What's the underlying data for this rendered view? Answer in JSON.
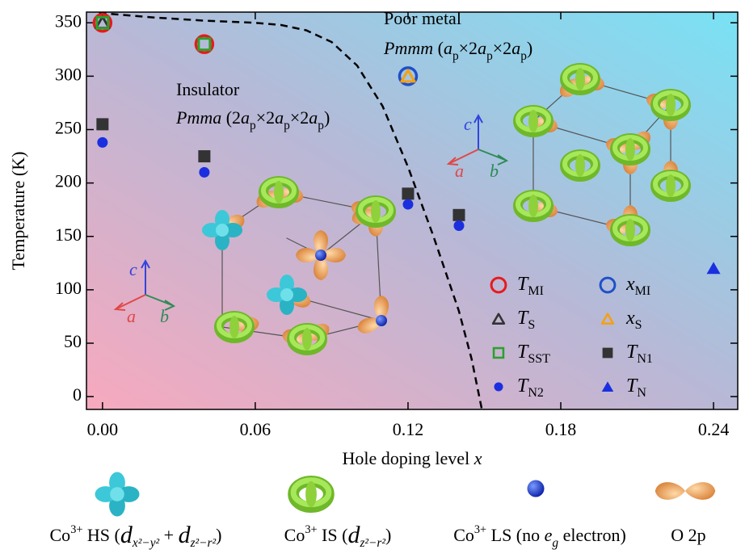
{
  "chart_data": {
    "type": "scatter",
    "x_label": [
      {
        "text": "Hole doping level "
      },
      {
        "text": "x",
        "italic": true
      }
    ],
    "y_label": "Temperature (K)",
    "xlim": [
      -0.0063,
      0.2495
    ],
    "ylim": [
      -12,
      360
    ],
    "xticks": [
      {
        "value": 0,
        "label": "0.00"
      },
      0.06,
      0.12,
      0.18,
      0.24
    ],
    "yticks": [
      0,
      50,
      100,
      150,
      200,
      250,
      300,
      350
    ],
    "series": [
      {
        "name": {
          "main": "T",
          "sub": "MI"
        },
        "marker": "open-circle",
        "color": "#e8191c",
        "x": [
          0,
          0.04
        ],
        "values": [
          350,
          330
        ]
      },
      {
        "name": {
          "main": "x",
          "sub": "MI"
        },
        "marker": "open-circle",
        "color": "#1f4fc9",
        "x": [
          0.12
        ],
        "values": [
          300
        ]
      },
      {
        "name": {
          "main": "T",
          "sub": "S"
        },
        "marker": "open-triangle",
        "color": "#333333",
        "x": [
          0
        ],
        "values": [
          350
        ]
      },
      {
        "name": {
          "main": "x",
          "sub": "S"
        },
        "marker": "open-triangle",
        "color": "#f5a012",
        "x": [
          0.12
        ],
        "values": [
          300
        ]
      },
      {
        "name": {
          "main": "T",
          "sub": "SST"
        },
        "marker": "open-square",
        "color": "#2ca02c",
        "x": [
          0,
          0.04
        ],
        "values": [
          350,
          330
        ]
      },
      {
        "name": {
          "main": "T",
          "sub": "N1"
        },
        "marker": "square",
        "color": "#333333",
        "x": [
          0,
          0.04,
          0.12,
          0.14
        ],
        "values": [
          255,
          225,
          190,
          170
        ]
      },
      {
        "name": {
          "main": "T",
          "sub": "N2"
        },
        "marker": "circle",
        "color": "#1b2fe0",
        "x": [
          0,
          0.04,
          0.12,
          0.14
        ],
        "values": [
          238,
          210,
          180,
          160
        ]
      },
      {
        "name": {
          "main": "T",
          "sub": "N"
        },
        "marker": "triangle",
        "color": "#1b2fe0",
        "x": [
          0.24
        ],
        "values": [
          120
        ]
      }
    ],
    "boundary": {
      "style": "dashed",
      "color": "#000000",
      "x": [
        -0.006,
        0,
        0.02,
        0.04,
        0.06,
        0.07,
        0.08,
        0.09,
        0.1,
        0.11,
        0.12,
        0.13,
        0.14,
        0.145,
        0.149
      ],
      "values": [
        362,
        359,
        355,
        352,
        350,
        348,
        343,
        332,
        310,
        272,
        215,
        150,
        80,
        35,
        -12
      ]
    },
    "annotations": [
      [
        {
          "text": "Insulator"
        }
      ],
      [
        {
          "text": "Pmma",
          "italic": true
        },
        {
          "text": " (2"
        },
        {
          "text": "a",
          "italic": true
        },
        {
          "text": "p",
          "sub": true
        },
        {
          "text": "×2"
        },
        {
          "text": "a",
          "italic": true
        },
        {
          "text": "p",
          "sub": true
        },
        {
          "text": "×2"
        },
        {
          "text": "a",
          "italic": true
        },
        {
          "text": "p",
          "sub": true
        },
        {
          "text": ")"
        }
      ],
      [
        {
          "text": "Poor metal"
        }
      ],
      [
        {
          "text": "Pmmm",
          "italic": true
        },
        {
          "text": " ("
        },
        {
          "text": "a",
          "italic": true
        },
        {
          "text": "p",
          "sub": true
        },
        {
          "text": "×2"
        },
        {
          "text": "a",
          "italic": true
        },
        {
          "text": "p",
          "sub": true
        },
        {
          "text": "×2"
        },
        {
          "text": "a",
          "italic": true
        },
        {
          "text": "p",
          "sub": true
        },
        {
          "text": ")"
        }
      ]
    ],
    "crystal_axes": [
      "a",
      "b",
      "c"
    ],
    "key": [
      [
        {
          "text": "Co"
        },
        {
          "text": "3+",
          "sup": true
        },
        {
          "text": " HS ("
        },
        {
          "text": "d",
          "italic": true,
          "large": true
        },
        {
          "text": "x²−y²",
          "italic": true,
          "sub": true
        },
        {
          "text": " + "
        },
        {
          "text": "d",
          "italic": true,
          "large": true
        },
        {
          "text": "z²−r²",
          "italic": true,
          "sub": true
        },
        {
          "text": ")"
        }
      ],
      [
        {
          "text": "Co"
        },
        {
          "text": "3+",
          "sup": true
        },
        {
          "text": " IS ("
        },
        {
          "text": "d",
          "italic": true,
          "large": true
        },
        {
          "text": "z²−r²",
          "italic": true,
          "sub": true
        },
        {
          "text": ")"
        }
      ],
      [
        {
          "text": "Co"
        },
        {
          "text": "3+",
          "sup": true
        },
        {
          "text": " LS (no "
        },
        {
          "text": "e",
          "italic": true
        },
        {
          "text": "g",
          "italic": true,
          "sub": true
        },
        {
          "text": " electron)"
        }
      ],
      [
        {
          "text": "O 2p"
        }
      ]
    ]
  }
}
